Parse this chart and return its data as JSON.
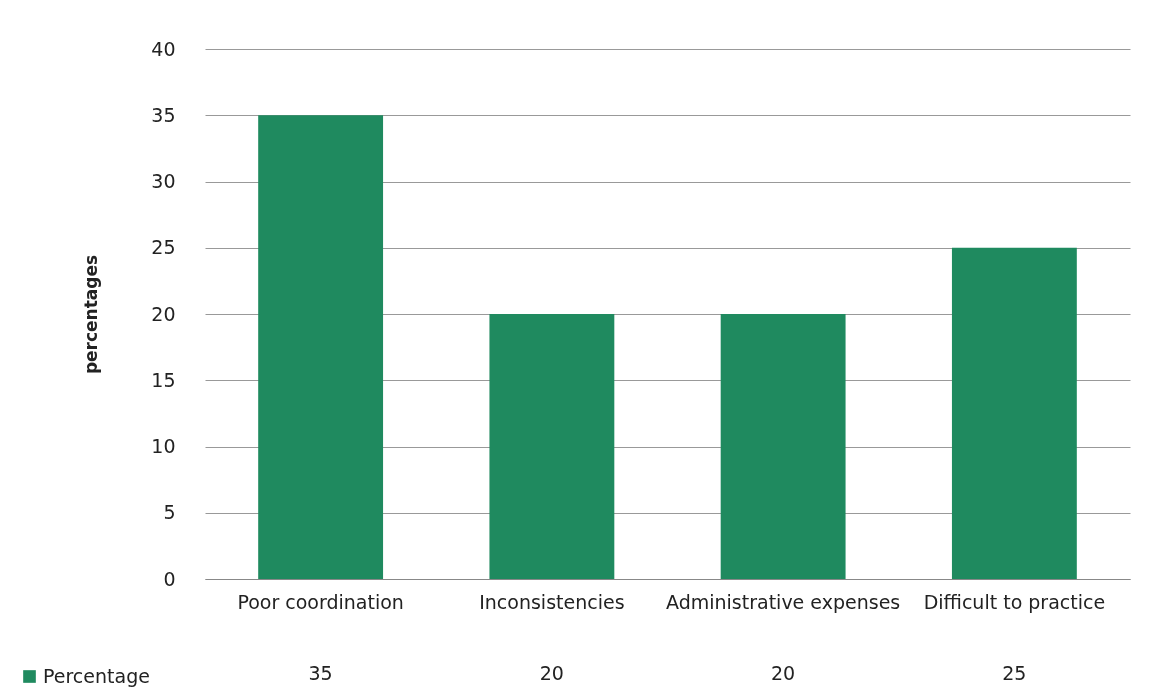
{
  "chart_data": {
    "type": "bar",
    "ylabel": "percentages",
    "categories": [
      "Poor coordination",
      "Inconsistencies",
      "Administrative expenses",
      "Difficult to practice"
    ],
    "series": [
      {
        "name": "Percentage",
        "color": "#1f8a5f",
        "values": [
          35,
          20,
          20,
          25
        ]
      }
    ],
    "ylim": [
      0,
      40
    ],
    "yticks": [
      0,
      5,
      10,
      15,
      20,
      25,
      30,
      35,
      40
    ],
    "grid": "y",
    "legend": "bottom left",
    "data_labels": true
  }
}
